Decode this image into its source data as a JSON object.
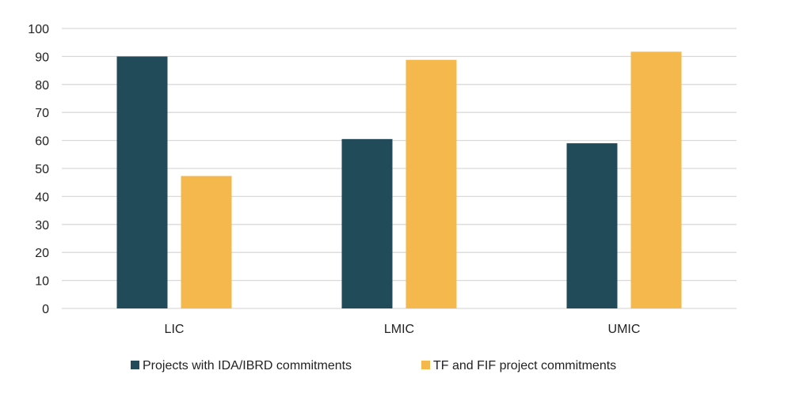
{
  "chart_data": {
    "type": "bar",
    "categories": [
      "LIC",
      "LMIC",
      "UMIC"
    ],
    "series": [
      {
        "name": "Projects with IDA/IBRD commitments",
        "color": "#224B5A",
        "values": [
          90,
          60.5,
          59
        ]
      },
      {
        "name": "TF and FIF project commitments",
        "color": "#F4B84C",
        "values": [
          47.3,
          88.8,
          91.7
        ]
      }
    ],
    "yticks": [
      "0",
      "10",
      "20",
      "30",
      "40",
      "50",
      "60",
      "70",
      "80",
      "90",
      "100"
    ],
    "ylim": [
      0,
      100
    ],
    "grid": true,
    "legend": "bottom"
  }
}
